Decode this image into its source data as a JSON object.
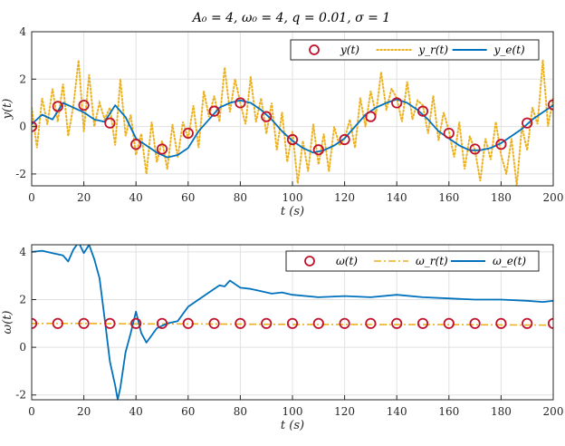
{
  "title": "A₀ = 4,  ω₀ = 4,  q = 0.01,  σ = 1",
  "colors": {
    "markers": "#c0122a",
    "measured": "#edb120",
    "estimate": "#0072bd",
    "grid": "#e1e1e1",
    "axis": "#262626"
  },
  "chart_data": [
    {
      "type": "line",
      "xlabel": "t (s)",
      "ylabel": "y(t)",
      "xlim": [
        0,
        200
      ],
      "ylim": [
        -2.5,
        4
      ],
      "xticks": [
        0,
        20,
        40,
        60,
        80,
        100,
        120,
        140,
        160,
        180,
        200
      ],
      "yticks": [
        -2,
        0,
        2,
        4
      ],
      "grid": true,
      "legend_position": "top-right",
      "series": [
        {
          "name": "y(t)",
          "style": "markers",
          "x": [
            0,
            10,
            20,
            30,
            40,
            50,
            60,
            70,
            80,
            90,
            100,
            110,
            120,
            130,
            140,
            150,
            160,
            170,
            180,
            190,
            200
          ],
          "y": [
            0,
            0.85,
            0.9,
            0.15,
            -0.75,
            -0.95,
            -0.28,
            0.65,
            1.0,
            0.42,
            -0.55,
            -0.98,
            -0.55,
            0.42,
            1.0,
            0.65,
            -0.28,
            -0.95,
            -0.75,
            0.15,
            0.92
          ]
        },
        {
          "name": "y_r(t)",
          "style": "dotted",
          "x": [
            0,
            2,
            4,
            6,
            8,
            10,
            12,
            14,
            16,
            18,
            20,
            22,
            24,
            26,
            28,
            30,
            32,
            34,
            36,
            38,
            40,
            42,
            44,
            46,
            48,
            50,
            52,
            54,
            56,
            58,
            60,
            62,
            64,
            66,
            68,
            70,
            72,
            74,
            76,
            78,
            80,
            82,
            84,
            86,
            88,
            90,
            92,
            94,
            96,
            98,
            100,
            102,
            104,
            106,
            108,
            110,
            112,
            114,
            116,
            118,
            120,
            122,
            124,
            126,
            128,
            130,
            132,
            134,
            136,
            138,
            140,
            142,
            144,
            146,
            148,
            150,
            152,
            154,
            156,
            158,
            160,
            162,
            164,
            166,
            168,
            170,
            172,
            174,
            176,
            178,
            180,
            182,
            184,
            186,
            188,
            190,
            192,
            194,
            196,
            198,
            200
          ],
          "y": [
            0.8,
            -0.9,
            1.2,
            0.1,
            1.6,
            0.2,
            1.8,
            -0.4,
            0.9,
            2.8,
            -0.2,
            2.2,
            0.0,
            1.0,
            0.3,
            0.8,
            -0.8,
            2.0,
            -0.4,
            0.5,
            -1.2,
            -0.3,
            -2.0,
            0.2,
            -1.5,
            -0.6,
            -1.8,
            0.1,
            -1.3,
            0.2,
            -0.5,
            0.9,
            -0.9,
            1.5,
            0.4,
            1.3,
            0.2,
            2.5,
            0.6,
            2.0,
            1.0,
            0.1,
            2.1,
            0.2,
            1.2,
            -0.3,
            1.0,
            -1.0,
            0.6,
            -1.5,
            -0.2,
            -2.4,
            -0.6,
            -1.9,
            0.1,
            -1.6,
            -0.3,
            -1.9,
            0.0,
            -0.8,
            -0.5,
            0.3,
            -0.9,
            1.2,
            0.0,
            1.5,
            0.5,
            2.3,
            0.7,
            1.6,
            1.2,
            0.2,
            1.9,
            0.3,
            1.1,
            0.9,
            -0.3,
            1.3,
            -0.6,
            0.6,
            -0.2,
            -1.3,
            0.2,
            -1.8,
            -0.4,
            -1.0,
            -2.3,
            -0.5,
            -1.4,
            0.2,
            -1.2,
            -2.0,
            -0.5,
            -2.5,
            0.0,
            -1.0,
            0.8,
            0.1,
            2.8,
            0.0,
            1.2
          ]
        },
        {
          "name": "y_e(t)",
          "style": "solid",
          "x": [
            0,
            4,
            8,
            12,
            16,
            20,
            24,
            28,
            32,
            36,
            40,
            44,
            48,
            52,
            56,
            60,
            64,
            68,
            72,
            76,
            80,
            84,
            88,
            92,
            96,
            100,
            104,
            108,
            112,
            116,
            120,
            124,
            128,
            132,
            136,
            140,
            144,
            148,
            152,
            156,
            160,
            164,
            168,
            172,
            176,
            180,
            184,
            188,
            192,
            196,
            200
          ],
          "y": [
            0.1,
            0.5,
            0.3,
            1.0,
            0.8,
            0.6,
            0.3,
            0.2,
            0.9,
            0.4,
            -0.5,
            -0.8,
            -1.1,
            -1.3,
            -1.2,
            -0.9,
            -0.2,
            0.3,
            0.8,
            1.0,
            1.1,
            1.0,
            0.7,
            0.3,
            -0.2,
            -0.6,
            -0.9,
            -1.1,
            -1.0,
            -0.8,
            -0.5,
            0.0,
            0.5,
            0.8,
            1.0,
            1.15,
            1.0,
            0.7,
            0.3,
            -0.2,
            -0.5,
            -0.8,
            -1.0,
            -1.0,
            -0.9,
            -0.7,
            -0.4,
            -0.1,
            0.3,
            0.6,
            0.9
          ]
        }
      ]
    },
    {
      "type": "line",
      "xlabel": "t (s)",
      "ylabel": "ω(t)",
      "xlim": [
        0,
        200
      ],
      "ylim": [
        -2.2,
        4.3
      ],
      "xticks": [
        0,
        20,
        40,
        60,
        80,
        100,
        120,
        140,
        160,
        180,
        200
      ],
      "yticks": [
        -2,
        0,
        2,
        4
      ],
      "grid": true,
      "legend_position": "top-right",
      "series": [
        {
          "name": "ω(t)",
          "style": "markers",
          "x": [
            0,
            10,
            20,
            30,
            40,
            50,
            60,
            70,
            80,
            90,
            100,
            110,
            120,
            130,
            140,
            150,
            160,
            170,
            180,
            190,
            200
          ],
          "y": [
            1,
            1,
            1,
            1,
            1,
            1,
            1,
            1,
            1,
            1,
            1,
            1,
            1,
            1,
            1,
            1,
            1,
            1,
            1,
            1,
            1
          ]
        },
        {
          "name": "ω_r(t)",
          "style": "dashdot",
          "x": [
            0,
            20,
            40,
            60,
            80,
            100,
            120,
            140,
            160,
            180,
            200
          ],
          "y": [
            1.0,
            1.0,
            0.98,
            0.98,
            0.97,
            0.96,
            0.96,
            0.95,
            0.95,
            0.94,
            0.93
          ]
        },
        {
          "name": "ω_e(t)",
          "style": "solid",
          "x": [
            0,
            4,
            8,
            12,
            14,
            16,
            18,
            20,
            22,
            24,
            26,
            28,
            30,
            32,
            33,
            34,
            36,
            38,
            40,
            42,
            44,
            46,
            48,
            52,
            56,
            58,
            60,
            64,
            68,
            72,
            74,
            76,
            80,
            84,
            88,
            92,
            96,
            100,
            110,
            120,
            130,
            140,
            150,
            160,
            170,
            180,
            190,
            196,
            200
          ],
          "y": [
            4.0,
            4.05,
            3.95,
            3.85,
            3.6,
            4.1,
            4.4,
            3.95,
            4.3,
            3.7,
            2.9,
            1.2,
            -0.6,
            -1.6,
            -2.2,
            -1.7,
            -0.2,
            0.6,
            1.5,
            0.6,
            0.2,
            0.5,
            0.8,
            1.0,
            1.1,
            1.4,
            1.7,
            2.0,
            2.3,
            2.6,
            2.55,
            2.8,
            2.5,
            2.45,
            2.35,
            2.25,
            2.3,
            2.2,
            2.1,
            2.15,
            2.1,
            2.2,
            2.1,
            2.05,
            2.0,
            2.0,
            1.95,
            1.9,
            1.95
          ]
        }
      ]
    }
  ]
}
